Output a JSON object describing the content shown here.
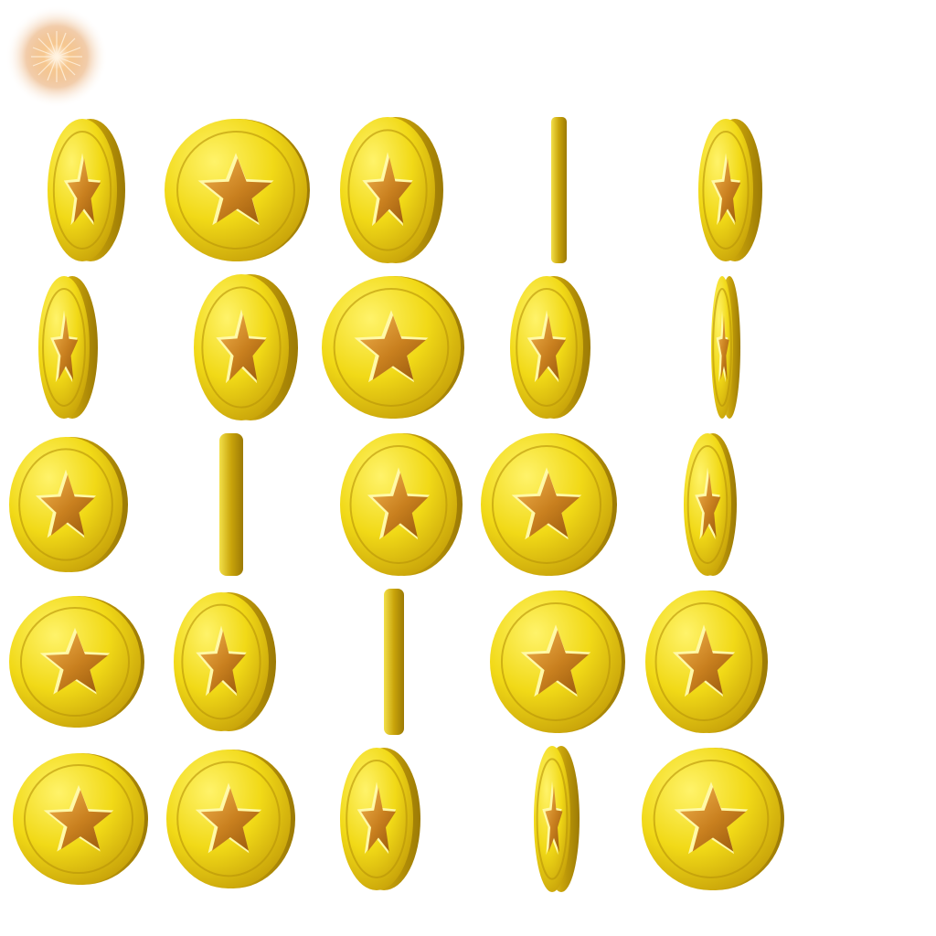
{
  "sprite_sheet": {
    "background": "#ffffff",
    "sparkle": {
      "icon": "sparkle-burst-icon",
      "color_core": "#f6c58a",
      "color_edge": "#e7a466"
    },
    "coin": {
      "icon": "gold-star-coin-icon",
      "colors": {
        "face_light": "#fff36a",
        "face_mid": "#f1d917",
        "face_dark": "#c9a40a",
        "edge_light": "#f3e04a",
        "edge_dark": "#9c7a05",
        "star_light": "#f3b44f",
        "star_dark": "#9a5a0c",
        "star_rim": "#fff9a8"
      }
    },
    "rows": 5,
    "columns": 5,
    "frame_count": 25
  }
}
